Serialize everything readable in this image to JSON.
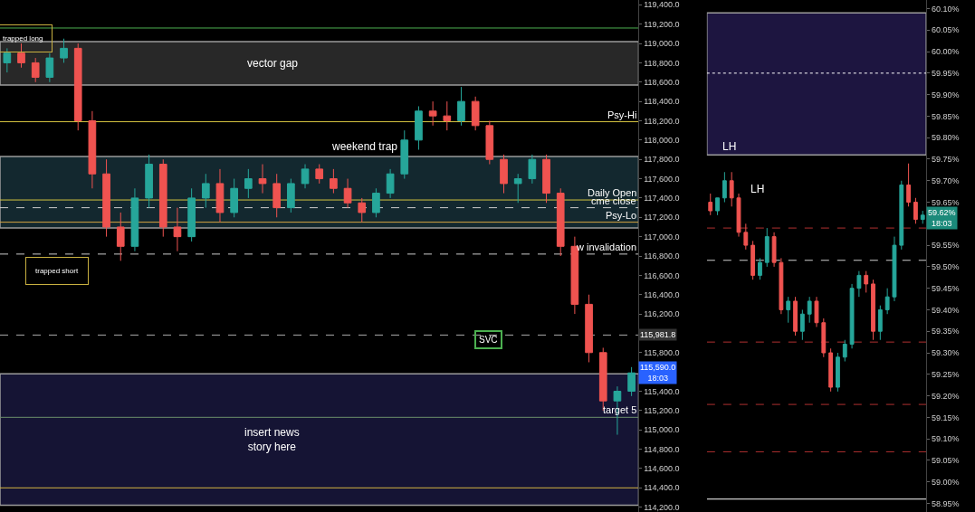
{
  "chart_data": [
    {
      "type": "candlestick",
      "categories": [
        null,
        null,
        null,
        null,
        null,
        null,
        null,
        null,
        null,
        null,
        null,
        null,
        null,
        null,
        null,
        null,
        null,
        null,
        null,
        null,
        null,
        null,
        null,
        null,
        null,
        null,
        null,
        null,
        null,
        null,
        null,
        null,
        null,
        null,
        null,
        null,
        null,
        null,
        null,
        null,
        null,
        null,
        null,
        null,
        null
      ],
      "colors": [
        "#26a69a",
        "#ef5350",
        "#ef5350",
        "#26a69a",
        "#26a69a",
        "#ef5350",
        "#ef5350",
        "#ef5350",
        "#ef5350",
        "#26a69a",
        "#26a69a",
        "#ef5350",
        "#ef5350",
        "#26a69a",
        "#26a69a",
        "#ef5350",
        "#26a69a",
        "#26a69a",
        "#ef5350",
        "#ef5350",
        "#26a69a",
        "#26a69a",
        "#ef5350",
        "#ef5350",
        "#ef5350",
        "#ef5350",
        "#26a69a",
        "#26a69a",
        "#26a69a",
        "#26a69a",
        "#ef5350",
        "#ef5350",
        "#26a69a",
        "#ef5350",
        "#ef5350",
        "#ef5350",
        "#26a69a",
        "#26a69a",
        "#ef5350",
        "#ef5350",
        "#ef5350",
        "#ef5350",
        "#ef5350",
        "#26a69a",
        "#26a69a"
      ],
      "ohlc": [
        [
          118800,
          118950,
          118700,
          118900
        ],
        [
          118900,
          119000,
          118750,
          118800
        ],
        [
          118800,
          118850,
          118600,
          118650
        ],
        [
          118650,
          118900,
          118600,
          118850
        ],
        [
          118850,
          119050,
          118800,
          118950
        ],
        [
          118950,
          119000,
          118100,
          118200
        ],
        [
          118200,
          118300,
          117500,
          117650
        ],
        [
          117650,
          117800,
          117000,
          117100
        ],
        [
          117100,
          117250,
          116750,
          116900
        ],
        [
          116900,
          117500,
          116850,
          117400
        ],
        [
          117400,
          117850,
          117300,
          117750
        ],
        [
          117750,
          117800,
          117000,
          117100
        ],
        [
          117100,
          117300,
          116850,
          117000
        ],
        [
          117000,
          117500,
          116950,
          117400
        ],
        [
          117400,
          117650,
          117300,
          117550
        ],
        [
          117550,
          117700,
          117150,
          117250
        ],
        [
          117250,
          117600,
          117200,
          117500
        ],
        [
          117500,
          117700,
          117400,
          117600
        ],
        [
          117600,
          117750,
          117450,
          117550
        ],
        [
          117550,
          117650,
          117200,
          117300
        ],
        [
          117300,
          117600,
          117250,
          117550
        ],
        [
          117550,
          117750,
          117500,
          117700
        ],
        [
          117700,
          117750,
          117550,
          117600
        ],
        [
          117600,
          117700,
          117450,
          117500
        ],
        [
          117500,
          117600,
          117300,
          117350
        ],
        [
          117350,
          117400,
          117150,
          117250
        ],
        [
          117250,
          117500,
          117200,
          117450
        ],
        [
          117450,
          117700,
          117400,
          117650
        ],
        [
          117650,
          118100,
          117600,
          118000
        ],
        [
          118000,
          118350,
          117900,
          118300
        ],
        [
          118300,
          118400,
          118150,
          118250
        ],
        [
          118250,
          118400,
          118100,
          118200
        ],
        [
          118200,
          118550,
          118150,
          118400
        ],
        [
          118400,
          118450,
          118100,
          118150
        ],
        [
          118150,
          118200,
          117750,
          117800
        ],
        [
          117800,
          117850,
          117450,
          117550
        ],
        [
          117550,
          117650,
          117350,
          117600
        ],
        [
          117600,
          117850,
          117550,
          117800
        ],
        [
          117800,
          117850,
          117350,
          117450
        ],
        [
          117450,
          117500,
          116800,
          116900
        ],
        [
          116900,
          117000,
          116200,
          116300
        ],
        [
          116300,
          116400,
          115700,
          115800
        ],
        [
          115800,
          115850,
          115200,
          115300
        ],
        [
          115300,
          115450,
          114950,
          115400
        ],
        [
          115400,
          115650,
          115350,
          115590
        ]
      ],
      "ylim": [
        114150,
        119450
      ],
      "yticks": [
        {
          "value": 114200,
          "label": "114,200.0"
        },
        {
          "value": 114400,
          "label": "114,400.0"
        },
        {
          "value": 114600,
          "label": "114,600.0"
        },
        {
          "value": 114800,
          "label": "114,800.0"
        },
        {
          "value": 115000,
          "label": "115,000.0"
        },
        {
          "value": 115200,
          "label": "115,200.0"
        },
        {
          "value": 115400,
          "label": "115,400.0"
        },
        {
          "value": 115800,
          "label": "115,800.0"
        },
        {
          "value": 116200,
          "label": "116,200.0"
        },
        {
          "value": 116400,
          "label": "116,400.0"
        },
        {
          "value": 116600,
          "label": "116,600.0"
        },
        {
          "value": 116800,
          "label": "116,800.0"
        },
        {
          "value": 117000,
          "label": "117,000.0"
        },
        {
          "value": 117200,
          "label": "117,200.0"
        },
        {
          "value": 117400,
          "label": "117,400.0"
        },
        {
          "value": 117600,
          "label": "117,600.0"
        },
        {
          "value": 117800,
          "label": "117,800.0"
        },
        {
          "value": 118000,
          "label": "118,000.0"
        },
        {
          "value": 118200,
          "label": "118,200.0"
        },
        {
          "value": 118400,
          "label": "118,400.0"
        },
        {
          "value": 118600,
          "label": "118,600.0"
        },
        {
          "value": 118800,
          "label": "118,800.0"
        },
        {
          "value": 119000,
          "label": "119,000.0"
        },
        {
          "value": 119200,
          "label": "119,200.0"
        },
        {
          "value": 119400,
          "label": "119,400.0"
        }
      ],
      "tick_labels": "y",
      "grid": false,
      "legend": false,
      "bands": [
        {
          "axis": "y",
          "from": 118570,
          "to": 119020,
          "label": "vector gap",
          "color": "#3a3a3a"
        },
        {
          "axis": "y",
          "from": 117090,
          "to": 117830,
          "color": "#1c3a44"
        },
        {
          "axis": "y",
          "from": 114220,
          "to": 115580,
          "label": "insert news\nstory here",
          "color": "#1e1d4a"
        }
      ],
      "ref_lines": [
        {
          "axis": "y",
          "value": 119160,
          "color": "#4caf50",
          "line_style": "solid"
        },
        {
          "axis": "y",
          "value": 118190,
          "label": "Psy-Hi",
          "color": "#d4c341",
          "line_style": "solid"
        },
        {
          "axis": "y",
          "value": 117380,
          "label": "Daily Open",
          "color": "#d4c341",
          "line_style": "solid"
        },
        {
          "axis": "y",
          "value": 117300,
          "label": "cme close",
          "color": "#cccccc",
          "line_style": "dashed"
        },
        {
          "axis": "y",
          "value": 117150,
          "label": "Psy-Lo",
          "color": "#d4a341",
          "line_style": "solid"
        },
        {
          "axis": "y",
          "value": 116820,
          "label": "w invalidation",
          "color": "#cccccc",
          "line_style": "dashed"
        },
        {
          "axis": "y",
          "value": 115981.8,
          "color": "#aaaaaa",
          "line_style": "dashed"
        },
        {
          "axis": "y",
          "value": 115130,
          "label": "target 5",
          "color": "#6a8f6a",
          "line_style": "solid"
        },
        {
          "axis": "y",
          "value": 114400,
          "color": "#d4b341",
          "line_style": "solid"
        }
      ],
      "annotations": [
        {
          "text": "trapped long",
          "y": 119050
        },
        "trapped short",
        "weekend trap",
        {
          "text": "SVC",
          "y": 115930
        },
        {
          "text": "115,981.8",
          "y": 115981.8
        },
        {
          "text": "115,590.0\n18:03",
          "y": 115590
        }
      ]
    },
    {
      "type": "candlestick",
      "categories": [
        null,
        null,
        null,
        null,
        null,
        null,
        null,
        null,
        null,
        null,
        null,
        null,
        null,
        null,
        null,
        null,
        null,
        null,
        null,
        null,
        null,
        null,
        null,
        null,
        null,
        null,
        null,
        null,
        null,
        null,
        null
      ],
      "colors": [
        "#ef5350",
        "#26a69a",
        "#26a69a",
        "#ef5350",
        "#ef5350",
        "#ef5350",
        "#ef5350",
        "#26a69a",
        "#26a69a",
        "#ef5350",
        "#ef5350",
        "#26a69a",
        "#ef5350",
        "#26a69a",
        "#26a69a",
        "#ef5350",
        "#ef5350",
        "#ef5350",
        "#26a69a",
        "#26a69a",
        "#26a69a",
        "#26a69a",
        "#ef5350",
        "#ef5350",
        "#26a69a",
        "#26a69a",
        "#26a69a",
        "#26a69a",
        "#ef5350",
        "#ef5350",
        "#26a69a"
      ],
      "ohlc": [
        [
          59.65,
          59.67,
          59.62,
          59.63
        ],
        [
          59.63,
          59.66,
          59.62,
          59.66
        ],
        [
          59.66,
          59.72,
          59.65,
          59.7
        ],
        [
          59.7,
          59.72,
          59.64,
          59.66
        ],
        [
          59.66,
          59.67,
          59.57,
          59.58
        ],
        [
          59.58,
          59.6,
          59.54,
          59.55
        ],
        [
          59.55,
          59.56,
          59.47,
          59.48
        ],
        [
          59.48,
          59.52,
          59.47,
          59.51
        ],
        [
          59.51,
          59.59,
          59.5,
          59.57
        ],
        [
          59.57,
          59.58,
          59.5,
          59.51
        ],
        [
          59.51,
          59.52,
          59.39,
          59.4
        ],
        [
          59.4,
          59.43,
          59.37,
          59.42
        ],
        [
          59.42,
          59.43,
          59.34,
          59.35
        ],
        [
          59.35,
          59.4,
          59.33,
          59.39
        ],
        [
          59.39,
          59.43,
          59.37,
          59.42
        ],
        [
          59.42,
          59.43,
          59.36,
          59.37
        ],
        [
          59.37,
          59.38,
          59.29,
          59.3
        ],
        [
          59.3,
          59.31,
          59.21,
          59.22
        ],
        [
          59.22,
          59.3,
          59.21,
          59.29
        ],
        [
          59.29,
          59.33,
          59.28,
          59.32
        ],
        [
          59.32,
          59.46,
          59.31,
          59.45
        ],
        [
          59.45,
          59.49,
          59.43,
          59.48
        ],
        [
          59.48,
          59.49,
          59.44,
          59.46
        ],
        [
          59.46,
          59.47,
          59.33,
          59.35
        ],
        [
          59.35,
          59.41,
          59.33,
          59.4
        ],
        [
          59.4,
          59.45,
          59.39,
          59.43
        ],
        [
          59.43,
          59.57,
          59.42,
          59.55
        ],
        [
          59.55,
          59.7,
          59.54,
          59.69
        ],
        [
          59.69,
          59.74,
          59.64,
          59.65
        ],
        [
          59.65,
          59.66,
          59.6,
          59.61
        ],
        [
          59.61,
          59.63,
          59.6,
          59.62
        ]
      ],
      "ylim": [
        58.93,
        60.12
      ],
      "yticks": [
        {
          "value": 58.95,
          "label": "58.95%"
        },
        {
          "value": 59.0,
          "label": "59.00%"
        },
        {
          "value": 59.05,
          "label": "59.05%"
        },
        {
          "value": 59.1,
          "label": "59.10%"
        },
        {
          "value": 59.15,
          "label": "59.15%"
        },
        {
          "value": 59.2,
          "label": "59.20%"
        },
        {
          "value": 59.25,
          "label": "59.25%"
        },
        {
          "value": 59.3,
          "label": "59.30%"
        },
        {
          "value": 59.35,
          "label": "59.35%"
        },
        {
          "value": 59.4,
          "label": "59.40%"
        },
        {
          "value": 59.45,
          "label": "59.45%"
        },
        {
          "value": 59.5,
          "label": "59.50%"
        },
        {
          "value": 59.55,
          "label": "59.55%"
        },
        {
          "value": 59.65,
          "label": "59.65%"
        },
        {
          "value": 59.7,
          "label": "59.70%"
        },
        {
          "value": 59.75,
          "label": "59.75%"
        },
        {
          "value": 59.8,
          "label": "59.80%"
        },
        {
          "value": 59.85,
          "label": "59.85%"
        },
        {
          "value": 59.9,
          "label": "59.90%"
        },
        {
          "value": 59.95,
          "label": "59.95%"
        },
        {
          "value": 60.0,
          "label": "60.00%"
        },
        {
          "value": 60.05,
          "label": "60.05%"
        },
        {
          "value": 60.1,
          "label": "60.10%"
        }
      ],
      "tick_labels": "y",
      "grid": false,
      "legend": false,
      "bands": [
        {
          "axis": "y",
          "from": 59.76,
          "to": 60.09,
          "color": "#2a1f5c"
        }
      ],
      "ref_lines": [
        {
          "axis": "y",
          "value": 59.95,
          "color": "#ffffff",
          "line_style": "dotted"
        },
        {
          "axis": "y",
          "value": 59.515,
          "color": "#cccccc",
          "line_style": "dashed"
        },
        {
          "axis": "y",
          "value": 59.59,
          "color": "#b03030",
          "line_style": "dashed"
        },
        {
          "axis": "y",
          "value": 59.325,
          "color": "#b03030",
          "line_style": "dashed"
        },
        {
          "axis": "y",
          "value": 59.18,
          "color": "#b03030",
          "line_style": "dashed"
        },
        {
          "axis": "y",
          "value": 59.07,
          "color": "#b03030",
          "line_style": "dashed"
        },
        {
          "axis": "y",
          "value": 58.96,
          "color": "#ffffff",
          "line_style": "solid"
        }
      ],
      "annotations": [
        {
          "text": "LH",
          "y": 59.76
        },
        "LH",
        "59.62%\n18:03"
      ]
    }
  ]
}
